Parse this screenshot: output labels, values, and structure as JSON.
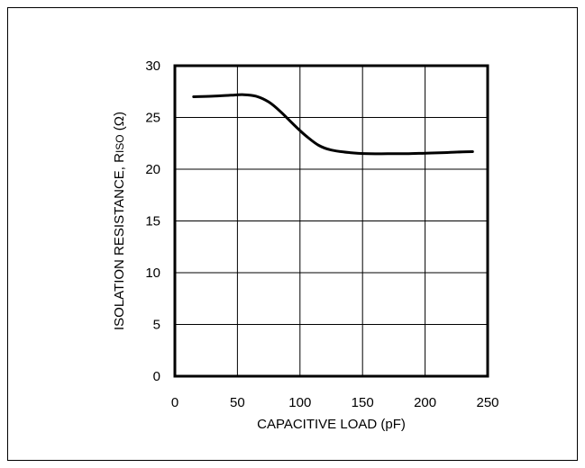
{
  "chart_data": {
    "type": "line",
    "title": "",
    "xlabel": "CAPACITIVE LOAD (pF)",
    "ylabel": {
      "prefix": "ISOLATION RESISTANCE, R",
      "subscript": "ISO",
      "suffix": " (Ω)"
    },
    "xlim": [
      0,
      250
    ],
    "ylim": [
      0,
      30
    ],
    "xticks": [
      "0",
      "50",
      "100",
      "150",
      "200",
      "250"
    ],
    "yticks": [
      "0",
      "5",
      "10",
      "15",
      "20",
      "25",
      "30"
    ],
    "grid": true,
    "series": [
      {
        "x": [
          15,
          30,
          45,
          55,
          65,
          75,
          85,
          95,
          105,
          115,
          125,
          140,
          155,
          170,
          185,
          200,
          215,
          225,
          238
        ],
        "y": [
          27.0,
          27.05,
          27.15,
          27.2,
          27.05,
          26.5,
          25.5,
          24.3,
          23.2,
          22.3,
          21.85,
          21.6,
          21.5,
          21.5,
          21.5,
          21.55,
          21.6,
          21.65,
          21.7
        ]
      }
    ]
  }
}
